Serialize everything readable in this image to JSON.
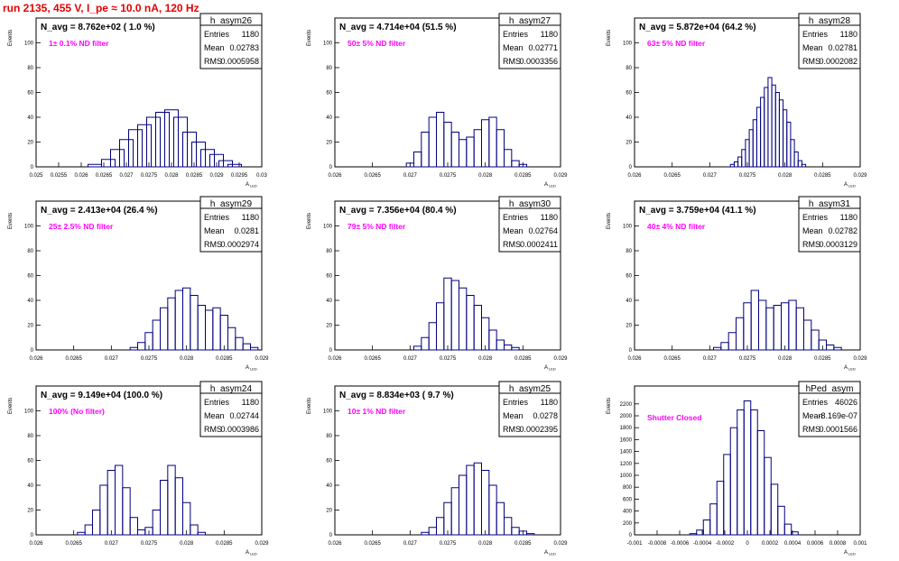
{
  "page": {
    "title": "run 2135,   455 V, I_pe ≈ 10.0 nA, 120 Hz"
  },
  "colors": {
    "line": "#000080",
    "title": "#e60000",
    "note": "#ff00ff",
    "frame": "#000000"
  },
  "chart_data": [
    {
      "type": "histogram",
      "name": "h_asym26",
      "stats": {
        "entries": "1180",
        "mean": "0.02783",
        "rms": "0.0005958"
      },
      "navg": "N_avg = 8.762e+02 ( 1.0 %)",
      "filter": "1± 0.1% ND filter",
      "ylabel": "Events",
      "xlabel": "A_LED",
      "xlim": [
        0.025,
        0.03
      ],
      "ylim": [
        0,
        120
      ],
      "xticks": [
        "0.025",
        "0.0255",
        "0.026",
        "0.0265",
        "0.027",
        "0.0275",
        "0.028",
        "0.0285",
        "0.029",
        "0.0295",
        "0.03"
      ],
      "yticks": [
        "0",
        "20",
        "40",
        "60",
        "80",
        "100"
      ],
      "x": [
        0.0263,
        0.0266,
        0.0268,
        0.027,
        0.0272,
        0.0274,
        0.0276,
        0.0278,
        0.028,
        0.0282,
        0.0284,
        0.0286,
        0.0288,
        0.029,
        0.0292,
        0.0294
      ],
      "y": [
        2,
        6,
        14,
        22,
        30,
        34,
        40,
        44,
        46,
        40,
        28,
        20,
        14,
        10,
        5,
        2
      ]
    },
    {
      "type": "histogram",
      "name": "h_asym27",
      "stats": {
        "entries": "1180",
        "mean": "0.02771",
        "rms": "0.0003356"
      },
      "navg": "N_avg = 4.714e+04 (51.5 %)",
      "filter": "50± 5% ND filter",
      "ylabel": "Events",
      "xlabel": "A_LED",
      "xlim": [
        0.026,
        0.029
      ],
      "ylim": [
        0,
        120
      ],
      "xticks": [
        "0.026",
        "0.0265",
        "0.027",
        "0.0275",
        "0.028",
        "0.0285",
        "0.029"
      ],
      "yticks": [
        "0",
        "20",
        "40",
        "60",
        "80",
        "100"
      ],
      "x": [
        0.027,
        0.0271,
        0.0272,
        0.0273,
        0.0274,
        0.0275,
        0.0276,
        0.0277,
        0.0278,
        0.0279,
        0.028,
        0.0281,
        0.0282,
        0.0283,
        0.0284,
        0.0285
      ],
      "y": [
        3,
        12,
        28,
        40,
        44,
        36,
        28,
        22,
        24,
        30,
        38,
        40,
        30,
        14,
        5,
        2
      ]
    },
    {
      "type": "histogram",
      "name": "h_asym28",
      "stats": {
        "entries": "1180",
        "mean": "0.02781",
        "rms": "0.0002082"
      },
      "navg": "N_avg = 5.872e+04 (64.2 %)",
      "filter": "63± 5% ND filter",
      "ylabel": "Events",
      "xlabel": "A_LED",
      "xlim": [
        0.026,
        0.029
      ],
      "ylim": [
        0,
        120
      ],
      "xticks": [
        "0.026",
        "0.0265",
        "0.027",
        "0.0275",
        "0.028",
        "0.0285",
        "0.029"
      ],
      "yticks": [
        "0",
        "20",
        "40",
        "60",
        "80",
        "100"
      ],
      "x": [
        0.0273,
        0.02735,
        0.0274,
        0.02745,
        0.0275,
        0.02755,
        0.0276,
        0.02765,
        0.0277,
        0.02775,
        0.0278,
        0.02785,
        0.0279,
        0.02795,
        0.028,
        0.02805,
        0.0281,
        0.02815,
        0.0282,
        0.02825
      ],
      "y": [
        2,
        4,
        8,
        14,
        22,
        30,
        38,
        48,
        56,
        64,
        72,
        66,
        60,
        54,
        46,
        36,
        22,
        12,
        5,
        2
      ]
    },
    {
      "type": "histogram",
      "name": "h_asym29",
      "stats": {
        "entries": "1180",
        "mean": "0.0281",
        "rms": "0.0002974"
      },
      "navg": "N_avg = 2.413e+04 (26.4 %)",
      "filter": "25± 2.5% ND filter",
      "ylabel": "Events",
      "xlabel": "A_LED",
      "xlim": [
        0.026,
        0.029
      ],
      "ylim": [
        0,
        120
      ],
      "xticks": [
        "0.026",
        "0.0265",
        "0.027",
        "0.0275",
        "0.028",
        "0.0285",
        "0.029"
      ],
      "yticks": [
        "0",
        "20",
        "40",
        "60",
        "80",
        "100"
      ],
      "x": [
        0.0273,
        0.0274,
        0.0275,
        0.0276,
        0.0277,
        0.0278,
        0.0279,
        0.028,
        0.0281,
        0.0282,
        0.0283,
        0.0284,
        0.0285,
        0.0286,
        0.0287,
        0.0288,
        0.0289
      ],
      "y": [
        2,
        6,
        14,
        24,
        34,
        42,
        48,
        50,
        44,
        36,
        32,
        34,
        28,
        18,
        10,
        5,
        2
      ]
    },
    {
      "type": "histogram",
      "name": "h_asym30",
      "stats": {
        "entries": "1180",
        "mean": "0.02764",
        "rms": "0.0002411"
      },
      "navg": "N_avg = 7.356e+04 (80.4 %)",
      "filter": "79± 5% ND filter",
      "ylabel": "Events",
      "xlabel": "A_LED",
      "xlim": [
        0.026,
        0.029
      ],
      "ylim": [
        0,
        120
      ],
      "xticks": [
        "0.026",
        "0.0265",
        "0.027",
        "0.0275",
        "0.028",
        "0.0285",
        "0.029"
      ],
      "yticks": [
        "0",
        "20",
        "40",
        "60",
        "80",
        "100"
      ],
      "x": [
        0.0271,
        0.0272,
        0.0273,
        0.0274,
        0.0275,
        0.0276,
        0.0277,
        0.0278,
        0.0279,
        0.028,
        0.0281,
        0.0282,
        0.0283,
        0.0284
      ],
      "y": [
        3,
        10,
        22,
        38,
        58,
        56,
        50,
        44,
        36,
        26,
        16,
        8,
        4,
        2
      ]
    },
    {
      "type": "histogram",
      "name": "h_asym31",
      "stats": {
        "entries": "1180",
        "mean": "0.02782",
        "rms": "0.0003129"
      },
      "navg": "N_avg = 3.759e+04 (41.1 %)",
      "filter": "40± 4% ND filter",
      "ylabel": "Events",
      "xlabel": "A_LED",
      "xlim": [
        0.026,
        0.029
      ],
      "ylim": [
        0,
        120
      ],
      "xticks": [
        "0.026",
        "0.0265",
        "0.027",
        "0.0275",
        "0.028",
        "0.0285",
        "0.029"
      ],
      "yticks": [
        "0",
        "20",
        "40",
        "60",
        "80",
        "100"
      ],
      "x": [
        0.0271,
        0.0272,
        0.0273,
        0.0274,
        0.0275,
        0.0276,
        0.0277,
        0.0278,
        0.0279,
        0.028,
        0.0281,
        0.0282,
        0.0283,
        0.0284,
        0.0285,
        0.0286,
        0.0287
      ],
      "y": [
        2,
        6,
        14,
        26,
        38,
        48,
        40,
        34,
        36,
        38,
        40,
        34,
        24,
        16,
        8,
        4,
        2
      ]
    },
    {
      "type": "histogram",
      "name": "h_asym24",
      "stats": {
        "entries": "1180",
        "mean": "0.02744",
        "rms": "0.0003986"
      },
      "navg": "N_avg = 9.149e+04 (100.0 %)",
      "filter": "100% (No filter)",
      "ylabel": "Events",
      "xlabel": "A_LED",
      "xlim": [
        0.026,
        0.029
      ],
      "ylim": [
        0,
        120
      ],
      "xticks": [
        "0.026",
        "0.0265",
        "0.027",
        "0.0275",
        "0.028",
        "0.0285",
        "0.029"
      ],
      "yticks": [
        "0",
        "20",
        "40",
        "60",
        "80",
        "100"
      ],
      "x": [
        0.0266,
        0.0267,
        0.0268,
        0.0269,
        0.027,
        0.0271,
        0.0272,
        0.0273,
        0.0274,
        0.0275,
        0.0276,
        0.0277,
        0.0278,
        0.0279,
        0.028,
        0.0281,
        0.0282
      ],
      "y": [
        2,
        8,
        20,
        40,
        52,
        56,
        38,
        14,
        4,
        6,
        20,
        44,
        56,
        46,
        26,
        8,
        2
      ]
    },
    {
      "type": "histogram",
      "name": "h_asym25",
      "stats": {
        "entries": "1180",
        "mean": "0.0278",
        "rms": "0.0002395"
      },
      "navg": "N_avg = 8.834e+03 ( 9.7 %)",
      "filter": "10± 1% ND filter",
      "ylabel": "Events",
      "xlabel": "A_LED",
      "xlim": [
        0.026,
        0.029
      ],
      "ylim": [
        0,
        120
      ],
      "xticks": [
        "0.026",
        "0.0265",
        "0.027",
        "0.0275",
        "0.028",
        "0.0285",
        "0.029"
      ],
      "yticks": [
        "0",
        "20",
        "40",
        "60",
        "80",
        "100"
      ],
      "x": [
        0.0272,
        0.0273,
        0.0274,
        0.0275,
        0.0276,
        0.0277,
        0.0278,
        0.0279,
        0.028,
        0.0281,
        0.0282,
        0.0283,
        0.0284,
        0.0285,
        0.0286
      ],
      "y": [
        2,
        6,
        14,
        26,
        38,
        48,
        56,
        58,
        52,
        40,
        26,
        14,
        6,
        3,
        1
      ]
    },
    {
      "type": "histogram",
      "name": "hPed_asym",
      "stats": {
        "entries": "46026",
        "mean": "-8.169e-07",
        "rms": "0.0001566"
      },
      "navg": "",
      "filter": "Shutter Closed",
      "ylabel": "Events",
      "xlabel": "A_LED",
      "xlim": [
        -0.001,
        0.001
      ],
      "ylim": [
        0,
        2500
      ],
      "xticks": [
        "-0.001",
        "-0.0008",
        "-0.0006",
        "-0.0004",
        "-0.0002",
        "0",
        "0.0002",
        "0.0004",
        "0.0006",
        "0.0008",
        "0.001"
      ],
      "yticks": [
        "0",
        "200",
        "400",
        "600",
        "800",
        "1000",
        "1200",
        "1400",
        "1600",
        "1800",
        "2000",
        "2200"
      ],
      "x": [
        -0.00048,
        -0.00042,
        -0.00036,
        -0.0003,
        -0.00024,
        -0.00018,
        -0.00012,
        -6e-05,
        0,
        6e-05,
        0.00012,
        0.00018,
        0.00024,
        0.0003,
        0.00036,
        0.00042
      ],
      "y": [
        20,
        80,
        250,
        520,
        900,
        1350,
        1800,
        2100,
        2250,
        2100,
        1750,
        1300,
        850,
        480,
        180,
        50
      ]
    }
  ]
}
